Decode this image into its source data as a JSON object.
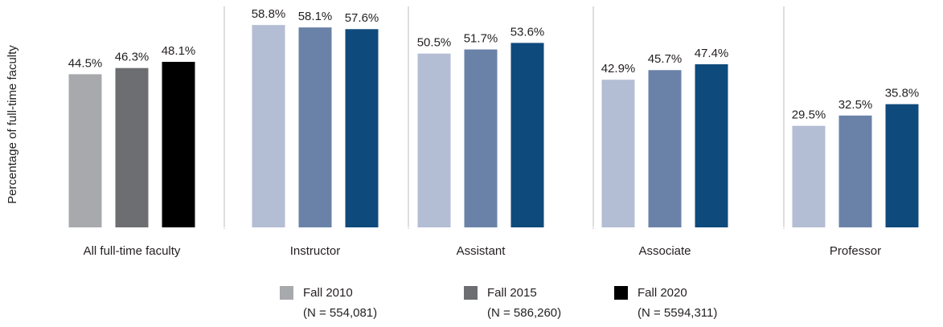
{
  "chart_data": {
    "type": "bar",
    "y_label": "Percentage of full-time faculty",
    "categories": [
      "All full-time faculty",
      "Instructor",
      "Assistant",
      "Associate",
      "Professor"
    ],
    "series": [
      {
        "name": "Fall 2010",
        "note": "(N = 554,081)",
        "color": "#a7a9ac",
        "values": [
          44.5,
          58.8,
          50.5,
          42.9,
          29.5
        ],
        "value_labels": [
          "44.5%",
          "58.8%",
          "50.5%",
          "42.9%",
          "29.5%"
        ]
      },
      {
        "name": "Fall 2015",
        "note": "(N = 586,260)",
        "color": "#6d6e71",
        "values": [
          46.3,
          58.1,
          51.7,
          45.7,
          32.5
        ],
        "value_labels": [
          "46.3%",
          "58.1%",
          "51.7%",
          "45.7%",
          "32.5%"
        ]
      },
      {
        "name": "Fall 2020",
        "note": "(N = 5594,311)",
        "color": "#000000",
        "values": [
          48.1,
          57.6,
          53.6,
          47.4,
          35.8
        ],
        "value_labels": [
          "48.1%",
          "57.6%",
          "53.6%",
          "47.4%",
          "35.8%"
        ]
      }
    ],
    "category_colors": [
      [
        "#a7a9ac",
        "#6d6e71",
        "#000000"
      ],
      [
        "#b3bdd3",
        "#6a82a8",
        "#0f4a7c"
      ],
      [
        "#b3bdd3",
        "#6a82a8",
        "#0f4a7c"
      ],
      [
        "#b3bdd3",
        "#6a82a8",
        "#0f4a7c"
      ],
      [
        "#b3bdd3",
        "#6a82a8",
        "#0f4a7c"
      ]
    ],
    "ylim": [
      0,
      60
    ],
    "grid": false
  }
}
